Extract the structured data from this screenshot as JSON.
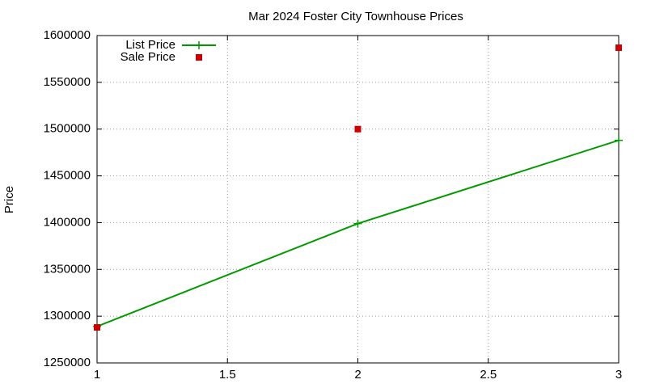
{
  "chart_data": {
    "type": "line",
    "title": "Mar 2024 Foster City Townhouse Prices",
    "y_label": "Price",
    "series": [
      {
        "name": "List Price",
        "color": "#009900",
        "style": "linespoints",
        "x": [
          1,
          2,
          3
        ],
        "values": [
          1289000,
          1399000,
          1488000
        ]
      },
      {
        "name": "Sale Price",
        "color": "#cc0000",
        "style": "points",
        "x": [
          1,
          2,
          3
        ],
        "values": [
          1288000,
          1500000,
          1587000
        ]
      }
    ],
    "xlim": [
      1,
      3
    ],
    "xticks": [
      1,
      1.5,
      2,
      2.5,
      3
    ],
    "ylim": [
      1250000,
      1600000
    ],
    "yticks": [
      1250000,
      1300000,
      1350000,
      1400000,
      1450000,
      1500000,
      1550000,
      1600000
    ],
    "grid": true,
    "legend": "top-left"
  }
}
